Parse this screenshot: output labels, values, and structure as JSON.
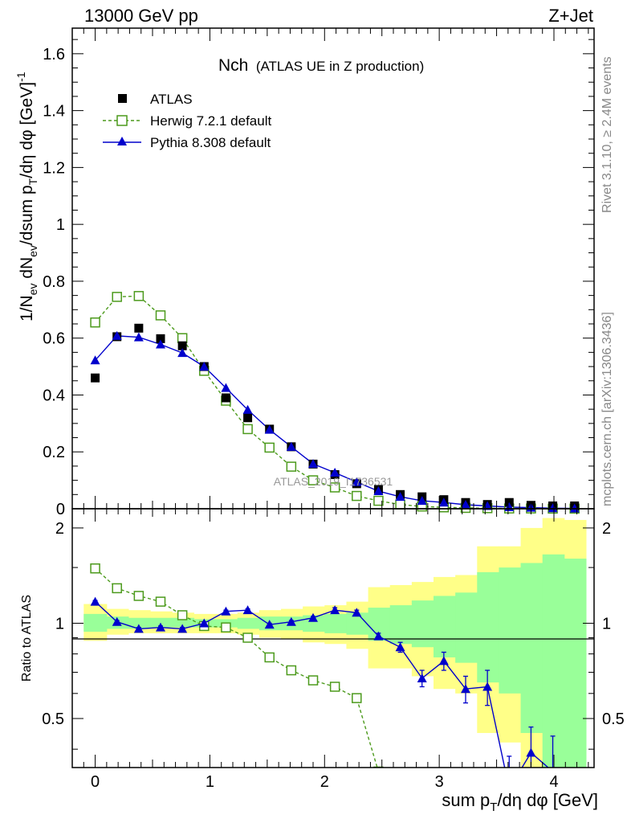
{
  "header": {
    "left": "13000 GeV pp",
    "right": "Z+Jet"
  },
  "side_labels": {
    "rivet": "Rivet 3.1.10, ≥ 2.4M events",
    "mcplots": "mcplots.cern.ch [arXiv:1306.3436]"
  },
  "watermark": "ATLAS_2019_I1736531",
  "chart_data": {
    "type": "scatter",
    "title": "Nch",
    "subtitle": "(ATLAS UE in Z production)",
    "xlabel": "sum p_T/dη dφ [GeV]",
    "ylabel": "1/N_ev dN_ev/dsum p_T/dη dφ [GeV]^-1",
    "xlim": [
      -0.2,
      4.35
    ],
    "ylim": [
      0,
      1.69
    ],
    "xticks": [
      "0",
      "1",
      "2",
      "3",
      "4"
    ],
    "yticks": [
      "0",
      "0.2",
      "0.4",
      "0.6",
      "0.8",
      "1",
      "1.2",
      "1.4",
      "1.6"
    ],
    "legend": {
      "position": "top-left",
      "entries": [
        "ATLAS",
        "Herwig 7.2.1 default",
        "Pythia 8.308 default"
      ]
    },
    "x": [
      0.0,
      0.19,
      0.38,
      0.57,
      0.76,
      0.95,
      1.14,
      1.33,
      1.52,
      1.71,
      1.9,
      2.09,
      2.28,
      2.47,
      2.66,
      2.85,
      3.04,
      3.23,
      3.42,
      3.61,
      3.8,
      3.99,
      4.18
    ],
    "series": [
      {
        "name": "ATLAS",
        "color": "#000000",
        "marker": "filled-square",
        "values": [
          0.46,
          0.605,
          0.635,
          0.598,
          0.573,
          0.5,
          0.39,
          0.32,
          0.28,
          0.218,
          0.157,
          0.12,
          0.088,
          0.068,
          0.05,
          0.042,
          0.032,
          0.022,
          0.015,
          0.022,
          0.012,
          0.01,
          0.01
        ]
      },
      {
        "name": "Herwig 7.2.1 default",
        "color": "#4c9a1c",
        "marker": "open-square",
        "values": [
          0.655,
          0.745,
          0.748,
          0.68,
          0.6,
          0.485,
          0.38,
          0.28,
          0.215,
          0.148,
          0.1,
          0.075,
          0.045,
          0.028,
          0.015,
          0.008,
          0.005,
          0.003,
          0.002,
          0.001,
          0.001,
          0.0005,
          0.0005
        ]
      },
      {
        "name": "Pythia 8.308 default",
        "color": "#0000cc",
        "marker": "filled-triangle",
        "values": [
          0.522,
          0.608,
          0.603,
          0.578,
          0.548,
          0.5,
          0.425,
          0.348,
          0.278,
          0.218,
          0.158,
          0.127,
          0.094,
          0.062,
          0.042,
          0.028,
          0.022,
          0.014,
          0.01,
          0.006,
          0.004,
          0.002,
          0.001
        ]
      }
    ],
    "ratio": {
      "ylabel": "Ratio to ATLAS",
      "ylim": [
        0.35,
        2.3
      ],
      "log_y": true,
      "yticks": [
        "0.5",
        "1",
        "2"
      ],
      "band_edges": [
        -0.1,
        0.1,
        0.29,
        0.48,
        0.67,
        0.86,
        1.05,
        1.24,
        1.43,
        1.62,
        1.81,
        2.0,
        2.19,
        2.38,
        2.57,
        2.76,
        2.95,
        3.14,
        3.33,
        3.52,
        3.71,
        3.9,
        4.09,
        4.28
      ],
      "band_inner": [
        [
          0.94,
          1.07
        ],
        [
          0.96,
          1.05
        ],
        [
          0.96,
          1.04
        ],
        [
          0.97,
          1.04
        ],
        [
          0.97,
          1.04
        ],
        [
          0.97,
          1.03
        ],
        [
          0.97,
          1.03
        ],
        [
          0.96,
          1.04
        ],
        [
          0.95,
          1.05
        ],
        [
          0.95,
          1.05
        ],
        [
          0.94,
          1.06
        ],
        [
          0.93,
          1.07
        ],
        [
          0.92,
          1.08
        ],
        [
          0.88,
          1.12
        ],
        [
          0.86,
          1.14
        ],
        [
          0.84,
          1.18
        ],
        [
          0.78,
          1.22
        ],
        [
          0.75,
          1.25
        ],
        [
          0.65,
          1.45
        ],
        [
          0.6,
          1.5
        ],
        [
          0.45,
          1.55
        ],
        [
          0.35,
          1.65
        ],
        [
          0.35,
          1.6
        ]
      ],
      "band_outer": [
        [
          0.88,
          1.15
        ],
        [
          0.92,
          1.11
        ],
        [
          0.93,
          1.1
        ],
        [
          0.93,
          1.09
        ],
        [
          0.93,
          1.08
        ],
        [
          0.93,
          1.07
        ],
        [
          0.93,
          1.07
        ],
        [
          0.92,
          1.08
        ],
        [
          0.9,
          1.1
        ],
        [
          0.89,
          1.11
        ],
        [
          0.87,
          1.13
        ],
        [
          0.86,
          1.14
        ],
        [
          0.83,
          1.17
        ],
        [
          0.72,
          1.3
        ],
        [
          0.72,
          1.32
        ],
        [
          0.68,
          1.35
        ],
        [
          0.62,
          1.4
        ],
        [
          0.6,
          1.42
        ],
        [
          0.45,
          1.75
        ],
        [
          0.42,
          1.75
        ],
        [
          0.35,
          2.0
        ],
        [
          0.35,
          2.15
        ],
        [
          0.35,
          2.12
        ]
      ],
      "series": [
        {
          "name": "Herwig 7.2.1 default",
          "color": "#4c9a1c",
          "x": [
            0.0,
            0.19,
            0.38,
            0.57,
            0.76,
            0.95,
            1.14,
            1.33,
            1.52,
            1.71,
            1.9,
            2.09,
            2.28,
            2.47
          ],
          "values": [
            1.49,
            1.29,
            1.22,
            1.17,
            1.06,
            0.98,
            0.97,
            0.9,
            0.78,
            0.71,
            0.66,
            0.63,
            0.58,
            0.34
          ]
        },
        {
          "name": "Pythia 8.308 default",
          "color": "#0000cc",
          "x": [
            0.0,
            0.19,
            0.38,
            0.57,
            0.76,
            0.95,
            1.14,
            1.33,
            1.52,
            1.71,
            1.9,
            2.09,
            2.28,
            2.47,
            2.66,
            2.85,
            3.04,
            3.23,
            3.42,
            3.61,
            3.8,
            3.99
          ],
          "values": [
            1.17,
            1.01,
            0.96,
            0.97,
            0.96,
            1.0,
            1.09,
            1.1,
            0.99,
            1.01,
            1.04,
            1.1,
            1.08,
            0.91,
            0.84,
            0.67,
            0.76,
            0.62,
            0.63,
            0.3,
            0.39,
            0.34
          ],
          "errors": [
            0.01,
            0.01,
            0.01,
            0.01,
            0.01,
            0.01,
            0.01,
            0.01,
            0.01,
            0.01,
            0.01,
            0.02,
            0.02,
            0.02,
            0.03,
            0.04,
            0.05,
            0.06,
            0.08,
            0.08,
            0.08,
            0.1
          ]
        }
      ]
    }
  }
}
